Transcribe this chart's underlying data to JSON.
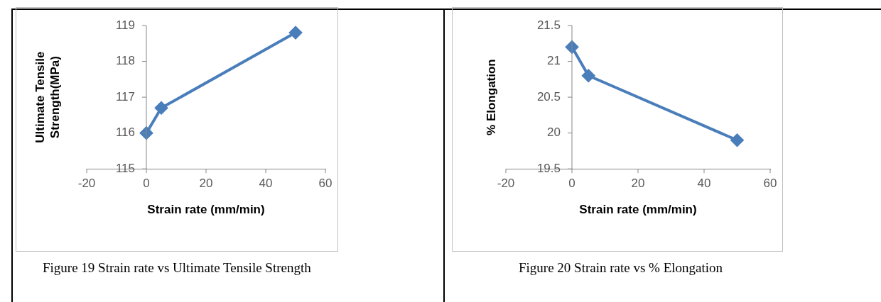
{
  "chart_data": [
    {
      "type": "line",
      "x": [
        0,
        5,
        50
      ],
      "series": [
        {
          "color": "#4a7ebb",
          "values": [
            116,
            116.7,
            118.8
          ]
        }
      ],
      "xlim": [
        -20,
        60
      ],
      "xticks": [
        -20,
        0,
        20,
        40,
        60
      ],
      "ylim": [
        115,
        119
      ],
      "yticks": [
        115,
        116,
        117,
        118,
        119
      ],
      "xlabel": "Strain rate (mm/min)",
      "ylabel": "Ultimate Tensile Strength(MPa)",
      "marker": "diamond",
      "grid": false,
      "legend": false,
      "annotations": [
        "Figure 19 Strain rate vs Ultimate Tensile Strength"
      ]
    },
    {
      "type": "line",
      "x": [
        0,
        5,
        50
      ],
      "series": [
        {
          "color": "#4a7ebb",
          "values": [
            21.2,
            20.8,
            19.9
          ]
        }
      ],
      "xlim": [
        -20,
        60
      ],
      "xticks": [
        -20,
        0,
        20,
        40,
        60
      ],
      "ylim": [
        19.5,
        21.5
      ],
      "yticks": [
        19.5,
        20,
        20.5,
        21,
        21.5
      ],
      "xlabel": "Strain rate (mm/min)",
      "ylabel": "% Elongation",
      "marker": "diamond",
      "grid": false,
      "legend": false,
      "annotations": [
        "Figure 20 Strain rate vs % Elongation"
      ]
    }
  ]
}
